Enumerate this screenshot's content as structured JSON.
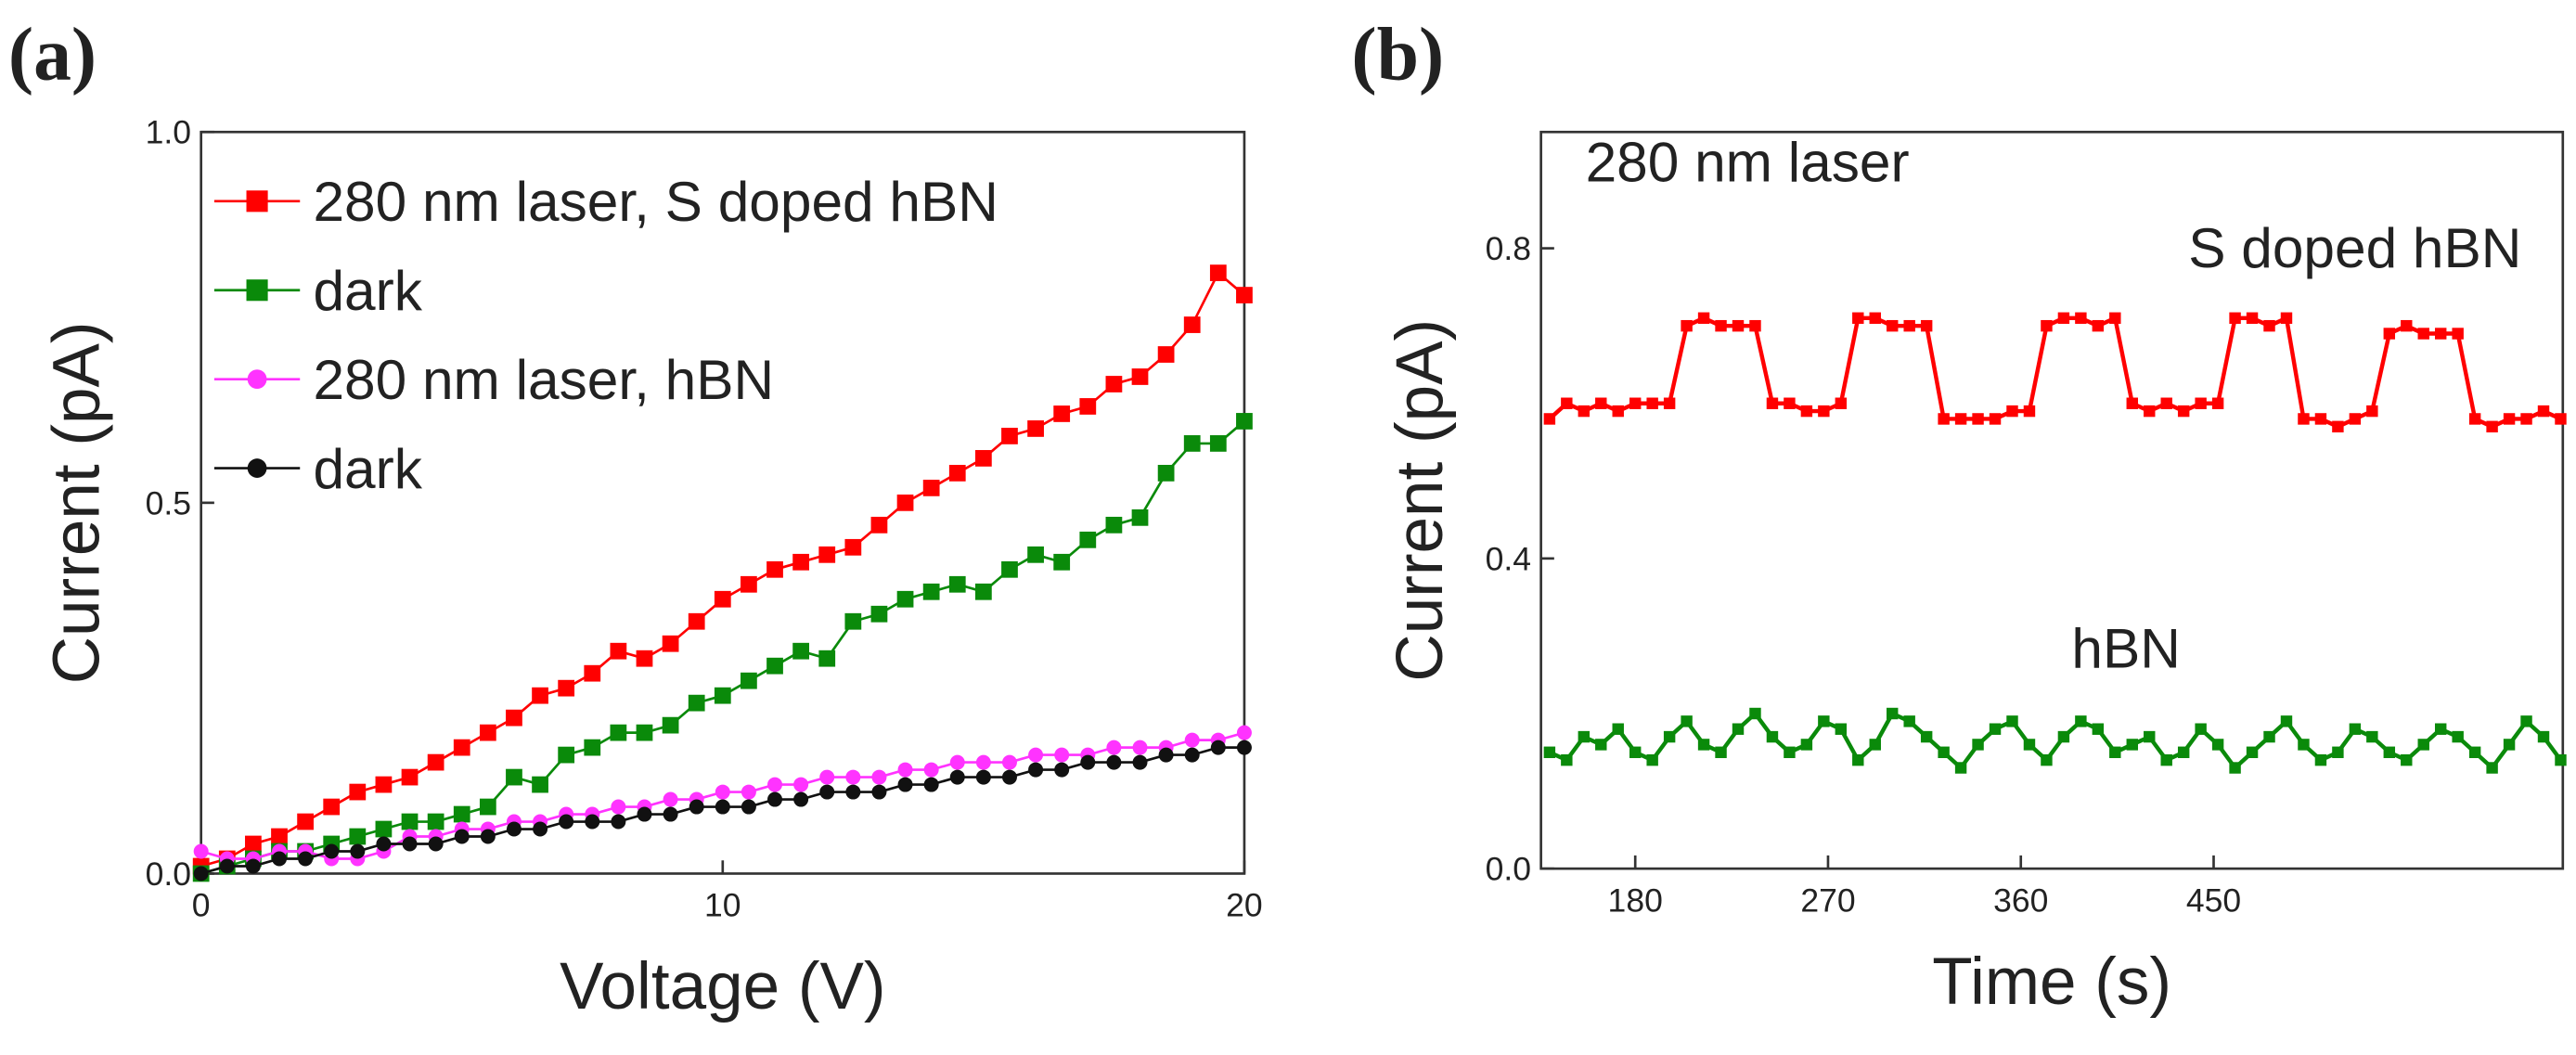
{
  "chart_data": [
    {
      "type": "line",
      "panel_label": "(a)",
      "xlabel": "Voltage (V)",
      "ylabel": "Current (pA)",
      "xlim": [
        0,
        20
      ],
      "ylim": [
        0,
        1.0
      ],
      "xticks": [
        0,
        10,
        20
      ],
      "yticks": [
        {
          "value": 0,
          "label": "0.0"
        },
        {
          "value": 0.5,
          "label": "0.5"
        },
        {
          "value": 1.0,
          "label": "1.0"
        }
      ],
      "legend": "upper left",
      "x": [
        0,
        0.5,
        1,
        1.5,
        2,
        2.5,
        3,
        3.5,
        4,
        4.5,
        5,
        5.5,
        6,
        6.5,
        7,
        7.5,
        8,
        8.5,
        9,
        9.5,
        10,
        10.5,
        11,
        11.5,
        12,
        12.5,
        13,
        13.5,
        14,
        14.5,
        15,
        15.5,
        16,
        16.5,
        17,
        17.5,
        18,
        18.5,
        19,
        19.5,
        20
      ],
      "series": [
        {
          "name": "280 nm laser, S doped hBN",
          "color": "#ff0000",
          "marker": "square",
          "values": [
            0.01,
            0.02,
            0.04,
            0.05,
            0.07,
            0.09,
            0.11,
            0.12,
            0.13,
            0.15,
            0.17,
            0.19,
            0.21,
            0.24,
            0.25,
            0.27,
            0.3,
            0.29,
            0.31,
            0.34,
            0.37,
            0.39,
            0.41,
            0.42,
            0.43,
            0.44,
            0.47,
            0.5,
            0.52,
            0.54,
            0.56,
            0.59,
            0.6,
            0.62,
            0.63,
            0.66,
            0.67,
            0.7,
            0.74,
            0.81,
            0.78
          ]
        },
        {
          "name": "dark",
          "color": "#0a8a0a",
          "marker": "square",
          "values": [
            0.0,
            0.01,
            0.02,
            0.03,
            0.03,
            0.04,
            0.05,
            0.06,
            0.07,
            0.07,
            0.08,
            0.09,
            0.13,
            0.12,
            0.16,
            0.17,
            0.19,
            0.19,
            0.2,
            0.23,
            0.24,
            0.26,
            0.28,
            0.3,
            0.29,
            0.34,
            0.35,
            0.37,
            0.38,
            0.39,
            0.38,
            0.41,
            0.43,
            0.42,
            0.45,
            0.47,
            0.48,
            0.54,
            0.58,
            0.58,
            0.61
          ]
        },
        {
          "name": "280 nm laser, hBN",
          "color": "#ff33ff",
          "marker": "circle",
          "values": [
            0.03,
            0.02,
            0.02,
            0.03,
            0.03,
            0.02,
            0.02,
            0.03,
            0.05,
            0.05,
            0.06,
            0.06,
            0.07,
            0.07,
            0.08,
            0.08,
            0.09,
            0.09,
            0.1,
            0.1,
            0.11,
            0.11,
            0.12,
            0.12,
            0.13,
            0.13,
            0.13,
            0.14,
            0.14,
            0.15,
            0.15,
            0.15,
            0.16,
            0.16,
            0.16,
            0.17,
            0.17,
            0.17,
            0.18,
            0.18,
            0.19
          ]
        },
        {
          "name": "dark",
          "color": "#111111",
          "marker": "circle",
          "values": [
            0.0,
            0.01,
            0.01,
            0.02,
            0.02,
            0.03,
            0.03,
            0.04,
            0.04,
            0.04,
            0.05,
            0.05,
            0.06,
            0.06,
            0.07,
            0.07,
            0.07,
            0.08,
            0.08,
            0.09,
            0.09,
            0.09,
            0.1,
            0.1,
            0.11,
            0.11,
            0.11,
            0.12,
            0.12,
            0.13,
            0.13,
            0.13,
            0.14,
            0.14,
            0.15,
            0.15,
            0.15,
            0.16,
            0.16,
            0.17,
            0.17
          ]
        }
      ]
    },
    {
      "type": "line",
      "panel_label": "(b)",
      "xlabel": "Time (s)",
      "ylabel": "Current (pA)",
      "xlim": [
        136,
        613
      ],
      "ylim": [
        0,
        0.95
      ],
      "xticks": [
        180,
        270,
        360,
        450
      ],
      "yticks": [
        {
          "value": 0,
          "label": "0.0"
        },
        {
          "value": 0.4,
          "label": "0.4"
        },
        {
          "value": 0.8,
          "label": "0.8"
        }
      ],
      "annotations": [
        "280 nm laser",
        "S doped hBN",
        "hBN"
      ],
      "x": [
        140,
        148,
        156,
        164,
        172,
        180,
        188,
        196,
        204,
        212,
        220,
        228,
        236,
        244,
        252,
        260,
        268,
        276,
        284,
        292,
        300,
        308,
        316,
        324,
        332,
        340,
        348,
        356,
        364,
        372,
        380,
        388,
        396,
        404,
        412,
        420,
        428,
        436,
        444,
        452,
        460,
        468,
        476,
        484,
        492,
        500,
        508,
        516,
        524,
        532,
        540,
        548,
        556,
        564,
        572,
        580,
        588,
        596,
        604,
        612
      ],
      "series": [
        {
          "color": "#ff0000",
          "marker": "square",
          "values": [
            0.58,
            0.6,
            0.59,
            0.6,
            0.59,
            0.6,
            0.6,
            0.6,
            0.7,
            0.71,
            0.7,
            0.7,
            0.7,
            0.6,
            0.6,
            0.59,
            0.59,
            0.6,
            0.71,
            0.71,
            0.7,
            0.7,
            0.7,
            0.58,
            0.58,
            0.58,
            0.58,
            0.59,
            0.59,
            0.7,
            0.71,
            0.71,
            0.7,
            0.71,
            0.6,
            0.59,
            0.6,
            0.59,
            0.6,
            0.6,
            0.71,
            0.71,
            0.7,
            0.71,
            0.58,
            0.58,
            0.57,
            0.58,
            0.59,
            0.69,
            0.7,
            0.69,
            0.69,
            0.69,
            0.58,
            0.57,
            0.58,
            0.58,
            0.59,
            0.58
          ]
        },
        {
          "color": "#0a8a0a",
          "marker": "square",
          "values": [
            0.15,
            0.14,
            0.17,
            0.16,
            0.18,
            0.15,
            0.14,
            0.17,
            0.19,
            0.16,
            0.15,
            0.18,
            0.2,
            0.17,
            0.15,
            0.16,
            0.19,
            0.18,
            0.14,
            0.16,
            0.2,
            0.19,
            0.17,
            0.15,
            0.13,
            0.16,
            0.18,
            0.19,
            0.16,
            0.14,
            0.17,
            0.19,
            0.18,
            0.15,
            0.16,
            0.17,
            0.14,
            0.15,
            0.18,
            0.16,
            0.13,
            0.15,
            0.17,
            0.19,
            0.16,
            0.14,
            0.15,
            0.18,
            0.17,
            0.15,
            0.14,
            0.16,
            0.18,
            0.17,
            0.15,
            0.13,
            0.16,
            0.19,
            0.17,
            0.14
          ]
        }
      ]
    }
  ]
}
